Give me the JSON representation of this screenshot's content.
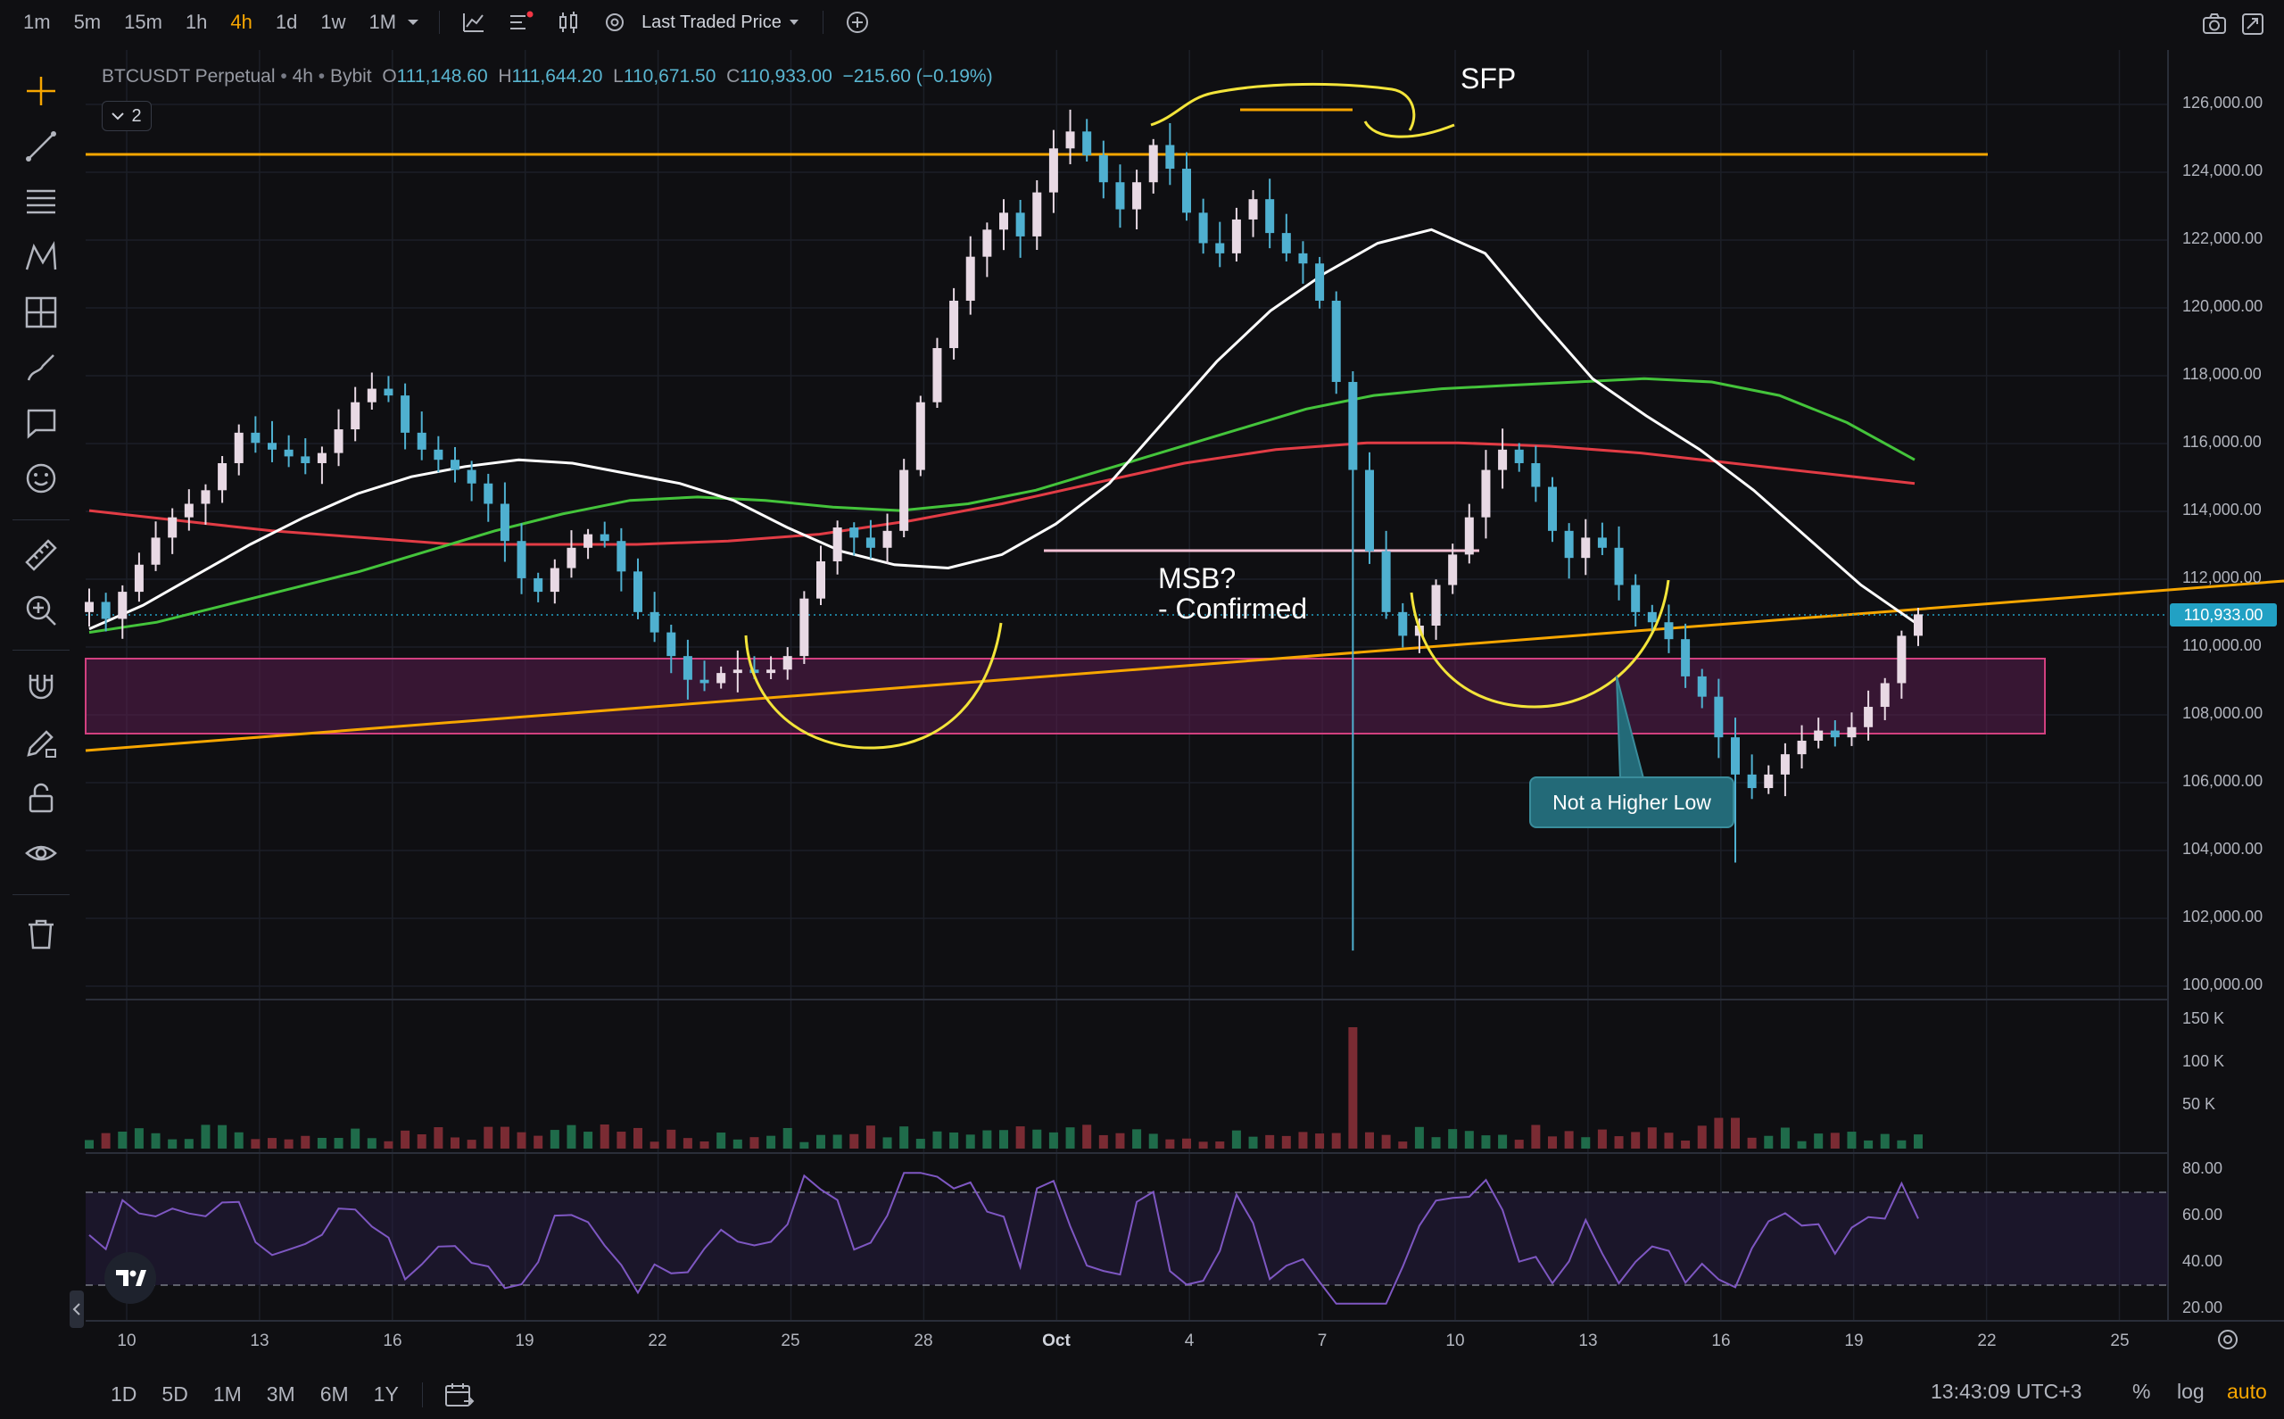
{
  "toolbar": {
    "timeframes": [
      "1m",
      "5m",
      "15m",
      "1h",
      "4h",
      "1d",
      "1w",
      "1M"
    ],
    "active_timeframe": "4h",
    "price_source": "Last Traded Price"
  },
  "legend": {
    "symbol": "BTCUSDT Perpetual",
    "interval": "4h",
    "exchange": "Bybit",
    "open_label": "O",
    "open": "111,148.60",
    "high_label": "H",
    "high": "111,644.20",
    "low_label": "L",
    "low": "110,671.50",
    "close_label": "C",
    "close": "110,933.00",
    "change": "−215.60 (−0.19%)",
    "indicator_count": "2"
  },
  "price_axis": {
    "labels": [
      "126,000.00",
      "124,000.00",
      "122,000.00",
      "120,000.00",
      "118,000.00",
      "116,000.00",
      "114,000.00",
      "112,000.00",
      "110,000.00",
      "108,000.00",
      "106,000.00",
      "104,000.00",
      "102,000.00",
      "100,000.00"
    ],
    "last_price": "110,933.00"
  },
  "volume_axis": {
    "labels": [
      "150 K",
      "100 K",
      "50 K"
    ]
  },
  "rsi_axis": {
    "labels": [
      "80.00",
      "60.00",
      "40.00",
      "20.00"
    ]
  },
  "time_axis": {
    "labels": [
      "10",
      "13",
      "16",
      "19",
      "22",
      "25",
      "28",
      "Oct",
      "4",
      "7",
      "10",
      "13",
      "16",
      "19",
      "22",
      "25"
    ]
  },
  "annotations": {
    "sfp": "SFP",
    "msb_line1": "MSB?",
    "msb_line2": "- Confirmed",
    "callout": "Not a Higher Low"
  },
  "bottom": {
    "ranges": [
      "1D",
      "5D",
      "1M",
      "3M",
      "6M",
      "1Y"
    ],
    "clock": "13:43:09 UTC+3",
    "percent": "%",
    "log": "log",
    "auto": "auto"
  },
  "chart_data": {
    "type": "candlestick",
    "symbol": "BTCUSDT Perpetual",
    "interval": "4h",
    "ylim": [
      99500,
      127000
    ],
    "closes": [
      111300,
      110800,
      111600,
      112400,
      113200,
      113800,
      114200,
      114600,
      115400,
      116300,
      116000,
      115800,
      115600,
      115400,
      115700,
      116400,
      117200,
      117600,
      117400,
      116300,
      115800,
      115500,
      115200,
      114800,
      114200,
      113100,
      112000,
      111600,
      112300,
      112900,
      113300,
      113100,
      112200,
      111000,
      110400,
      109700,
      109000,
      108900,
      109200,
      109300,
      109200,
      109300,
      109700,
      111400,
      112500,
      113500,
      113200,
      112900,
      113400,
      115200,
      117200,
      118800,
      120200,
      121500,
      122300,
      122800,
      122100,
      123400,
      124700,
      125200,
      124500,
      123700,
      122900,
      123700,
      124800,
      124100,
      122800,
      121900,
      121600,
      122600,
      123200,
      122200,
      121600,
      121300,
      120200,
      117800,
      115200,
      112800,
      111000,
      110300,
      110600,
      111800,
      112700,
      113800,
      115200,
      115800,
      115400,
      114700,
      113400,
      112600,
      113200,
      112900,
      111800,
      111000,
      110700,
      110200,
      109100,
      108500,
      107300,
      106200,
      105800,
      106200,
      106800,
      107200,
      107500,
      107300,
      107600,
      108200,
      108900,
      110300,
      110933
    ],
    "ma_white_approx": [
      110500,
      111200,
      112100,
      113000,
      113800,
      114500,
      115000,
      115300,
      115500,
      115400,
      115100,
      114800,
      114300,
      113500,
      112800,
      112400,
      112300,
      112700,
      113600,
      114800,
      116600,
      118400,
      119900,
      121000,
      121900,
      122300,
      121600,
      119700,
      117900,
      116800,
      115800,
      114600,
      113200,
      111800,
      110700
    ],
    "ma_green_approx": [
      110400,
      110700,
      111200,
      111700,
      112200,
      112800,
      113400,
      113900,
      114300,
      114400,
      114300,
      114100,
      114000,
      114200,
      114600,
      115200,
      115800,
      116400,
      117000,
      117400,
      117600,
      117700,
      117800,
      117900,
      117800,
      117400,
      116600,
      115500
    ],
    "ma_red_approx": [
      114000,
      113700,
      113400,
      113200,
      113000,
      113000,
      113000,
      113100,
      113300,
      113700,
      114200,
      114800,
      115400,
      115800,
      116000,
      116000,
      115900,
      115700,
      115400,
      115100,
      114800
    ],
    "support_zone": [
      107500,
      109600
    ],
    "horizontal_level": 124500,
    "msb_level": 112800
  }
}
